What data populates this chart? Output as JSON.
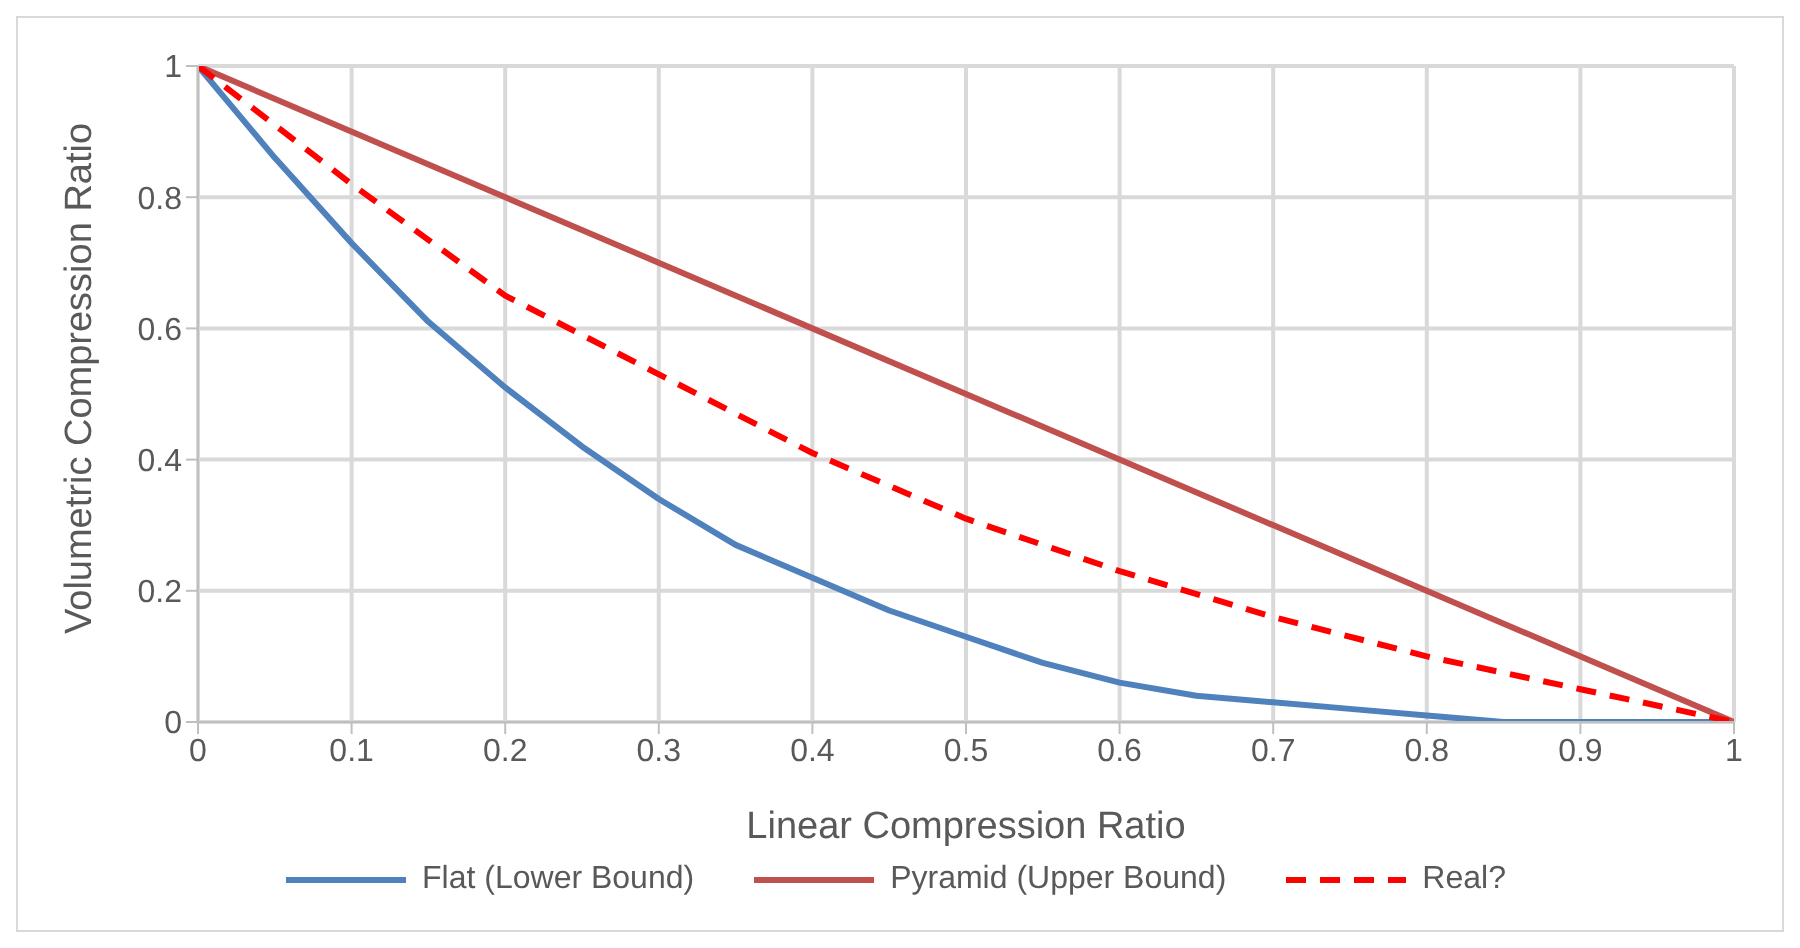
{
  "chart_data": {
    "type": "line",
    "xlabel": "Linear Compression Ratio",
    "ylabel": "Volumetric Compression Ratio",
    "xlim": [
      0,
      1
    ],
    "xticks": [
      0,
      0.1,
      0.2,
      0.3,
      0.4,
      0.5,
      0.6,
      0.7,
      0.8,
      0.9,
      1
    ],
    "ylim": [
      0,
      1
    ],
    "yticks": [
      0,
      0.2,
      0.4,
      0.6,
      0.8,
      1
    ],
    "grid": true,
    "legend": "bottom",
    "marker": "none",
    "series": [
      {
        "name": "Flat (Lower Bound)",
        "color": "#4f81bd",
        "line_style": "solid",
        "x": [
          0,
          0.05,
          0.1,
          0.15,
          0.2,
          0.25,
          0.3,
          0.35,
          0.4,
          0.45,
          0.5,
          0.55,
          0.6,
          0.65,
          0.7,
          0.75,
          0.8,
          0.85,
          0.9,
          0.95,
          1
        ],
        "values": [
          1,
          0.86,
          0.73,
          0.61,
          0.51,
          0.42,
          0.34,
          0.27,
          0.22,
          0.17,
          0.13,
          0.09,
          0.06,
          0.04,
          0.03,
          0.02,
          0.01,
          0,
          0,
          0,
          0
        ]
      },
      {
        "name": "Pyramid (Upper Bound)",
        "color": "#c0504d",
        "line_style": "solid",
        "x": [
          0,
          1
        ],
        "values": [
          1,
          0
        ]
      },
      {
        "name": "Real?",
        "color": "#ff0000",
        "line_style": "dashed",
        "x": [
          0,
          0.1,
          0.2,
          0.3,
          0.4,
          0.5,
          0.6,
          0.7,
          0.8,
          0.9,
          1
        ],
        "values": [
          1,
          0.82,
          0.65,
          0.53,
          0.41,
          0.31,
          0.23,
          0.16,
          0.1,
          0.05,
          0
        ]
      }
    ]
  }
}
